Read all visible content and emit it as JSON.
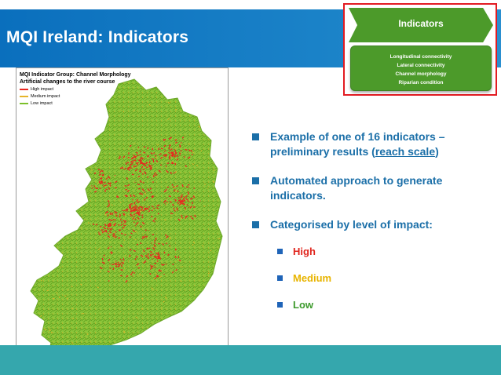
{
  "slide": {
    "title": "MQI Ireland: Indicators"
  },
  "callout": {
    "header": "Indicators",
    "items": [
      "Longitudinal connectivity",
      "Lateral connectivity",
      "Channel morphology",
      "Riparian condition"
    ]
  },
  "map": {
    "title_line1": "MQI Indicator Group: Channel Morphology",
    "title_line2": "Artificial changes to the river course",
    "legend": [
      {
        "label": "High impact",
        "color": "#e8261f"
      },
      {
        "label": "Medium impact",
        "color": "#e6b42a"
      },
      {
        "label": "Low impact",
        "color": "#7cc02a"
      }
    ]
  },
  "bullets": {
    "b1_pre": "Example of one of 16 indicators – preliminary results (",
    "b1_link": "reach scale",
    "b1_post": ")",
    "b2": "Automated approach to generate indicators.",
    "b3": "Categorised by level of impact:",
    "levels": [
      {
        "label": "High",
        "color": "#e0251d"
      },
      {
        "label": "Medium",
        "color": "#e8b400"
      },
      {
        "label": "Low",
        "color": "#3c9a2c"
      }
    ]
  },
  "colors": {
    "title_bar": "#0a6fbd",
    "bullet_text": "#1b6fa8",
    "callout_green": "#4c9a2a",
    "callout_border": "#e21b22",
    "bottom_band": "#35a7ad"
  }
}
